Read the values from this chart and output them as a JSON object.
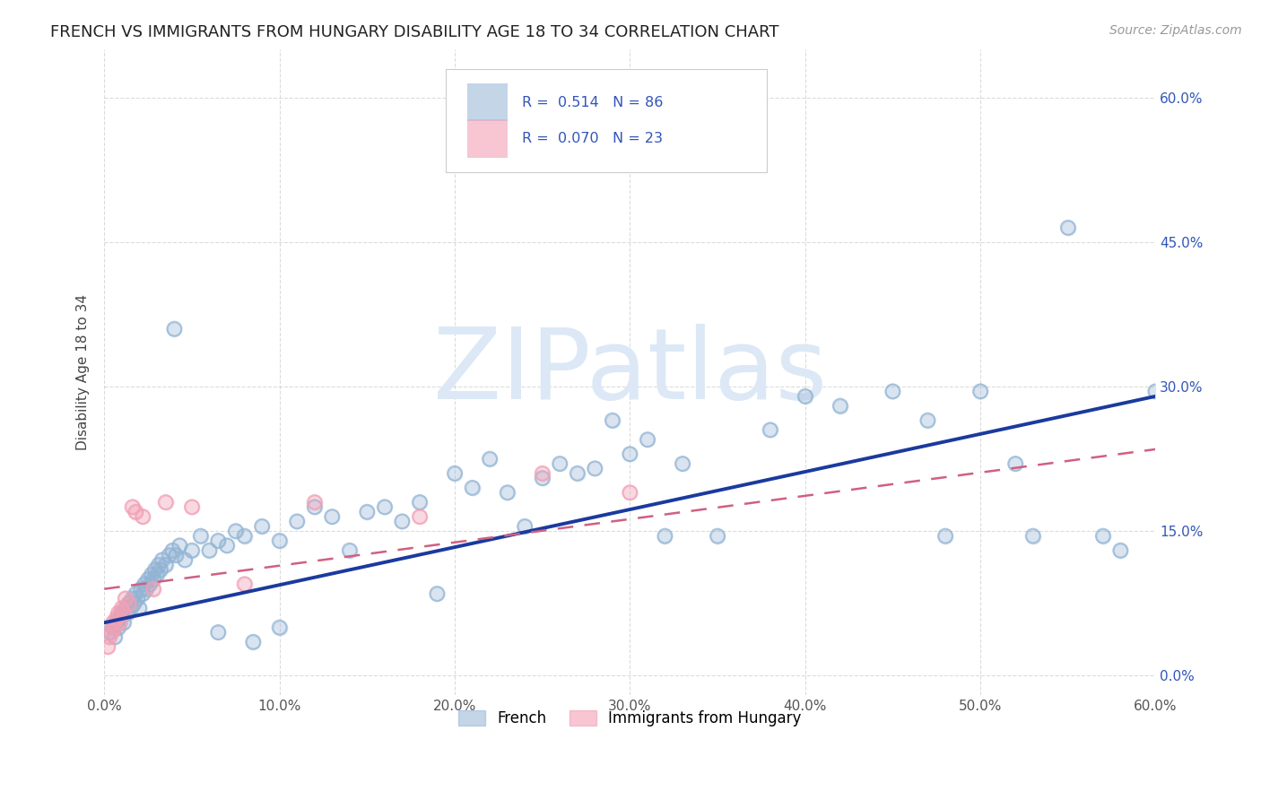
{
  "title": "FRENCH VS IMMIGRANTS FROM HUNGARY DISABILITY AGE 18 TO 34 CORRELATION CHART",
  "source": "Source: ZipAtlas.com",
  "ylabel": "Disability Age 18 to 34",
  "x_tick_values": [
    0,
    10,
    20,
    30,
    40,
    50,
    60
  ],
  "y_tick_values": [
    0,
    15,
    30,
    45,
    60
  ],
  "xlim": [
    0,
    60
  ],
  "ylim": [
    -2,
    65
  ],
  "blue_color": "#92b4d4",
  "pink_color": "#f2a0b5",
  "trend_blue_color": "#1a3a9e",
  "trend_pink_color": "#d06080",
  "grid_color": "#cccccc",
  "background_color": "#ffffff",
  "watermark": "ZIPatlas",
  "watermark_color": "#dce8f5",
  "legend_r1": "R =  0.514   N = 86",
  "legend_r2": "R =  0.070   N = 23",
  "legend_text_color": "#3355bb",
  "right_axis_color": "#3355bb",
  "french_x": [
    0.3,
    0.5,
    0.6,
    0.7,
    0.8,
    0.9,
    1.0,
    1.1,
    1.2,
    1.3,
    1.4,
    1.5,
    1.6,
    1.7,
    1.8,
    1.9,
    2.0,
    2.1,
    2.2,
    2.3,
    2.4,
    2.5,
    2.6,
    2.7,
    2.8,
    2.9,
    3.0,
    3.1,
    3.2,
    3.3,
    3.5,
    3.7,
    3.9,
    4.1,
    4.3,
    4.6,
    5.0,
    5.5,
    6.0,
    6.5,
    7.0,
    7.5,
    8.0,
    9.0,
    10.0,
    11.0,
    12.0,
    13.0,
    14.0,
    15.0,
    16.0,
    17.0,
    18.0,
    19.0,
    20.0,
    21.0,
    22.0,
    23.0,
    24.0,
    25.0,
    26.0,
    27.0,
    28.0,
    29.0,
    30.0,
    31.0,
    32.0,
    33.0,
    35.0,
    38.0,
    40.0,
    42.0,
    45.0,
    47.0,
    48.0,
    50.0,
    52.0,
    53.0,
    55.0,
    57.0,
    58.0,
    60.0,
    4.0,
    6.5,
    8.5,
    10.0
  ],
  "french_y": [
    4.5,
    5.0,
    4.0,
    5.5,
    5.0,
    6.0,
    6.5,
    5.5,
    7.0,
    6.5,
    7.5,
    7.0,
    8.0,
    7.5,
    8.5,
    8.0,
    7.0,
    9.0,
    8.5,
    9.5,
    9.0,
    10.0,
    9.5,
    10.5,
    10.0,
    11.0,
    10.5,
    11.5,
    11.0,
    12.0,
    11.5,
    12.5,
    13.0,
    12.5,
    13.5,
    12.0,
    13.0,
    14.5,
    13.0,
    14.0,
    13.5,
    15.0,
    14.5,
    15.5,
    14.0,
    16.0,
    17.5,
    16.5,
    13.0,
    17.0,
    17.5,
    16.0,
    18.0,
    8.5,
    21.0,
    19.5,
    22.5,
    19.0,
    15.5,
    20.5,
    22.0,
    21.0,
    21.5,
    26.5,
    23.0,
    24.5,
    14.5,
    22.0,
    14.5,
    25.5,
    29.0,
    28.0,
    29.5,
    26.5,
    14.5,
    29.5,
    22.0,
    14.5,
    46.5,
    14.5,
    13.0,
    29.5,
    36.0,
    4.5,
    3.5,
    5.0
  ],
  "hungary_x": [
    0.2,
    0.3,
    0.4,
    0.5,
    0.6,
    0.7,
    0.8,
    0.9,
    1.0,
    1.1,
    1.2,
    1.4,
    1.6,
    1.8,
    2.2,
    2.8,
    3.5,
    5.0,
    8.0,
    12.0,
    18.0,
    25.0,
    30.0
  ],
  "hungary_y": [
    3.0,
    4.0,
    4.5,
    5.5,
    5.0,
    6.0,
    6.5,
    5.5,
    7.0,
    6.5,
    8.0,
    7.5,
    17.5,
    17.0,
    16.5,
    9.0,
    18.0,
    17.5,
    9.5,
    18.0,
    16.5,
    21.0,
    19.0
  ],
  "trend_blue_x0": 0,
  "trend_blue_y0": 5.5,
  "trend_blue_x1": 60,
  "trend_blue_y1": 29.0,
  "trend_pink_x0": 0,
  "trend_pink_y0": 9.0,
  "trend_pink_x1": 60,
  "trend_pink_y1": 23.5
}
